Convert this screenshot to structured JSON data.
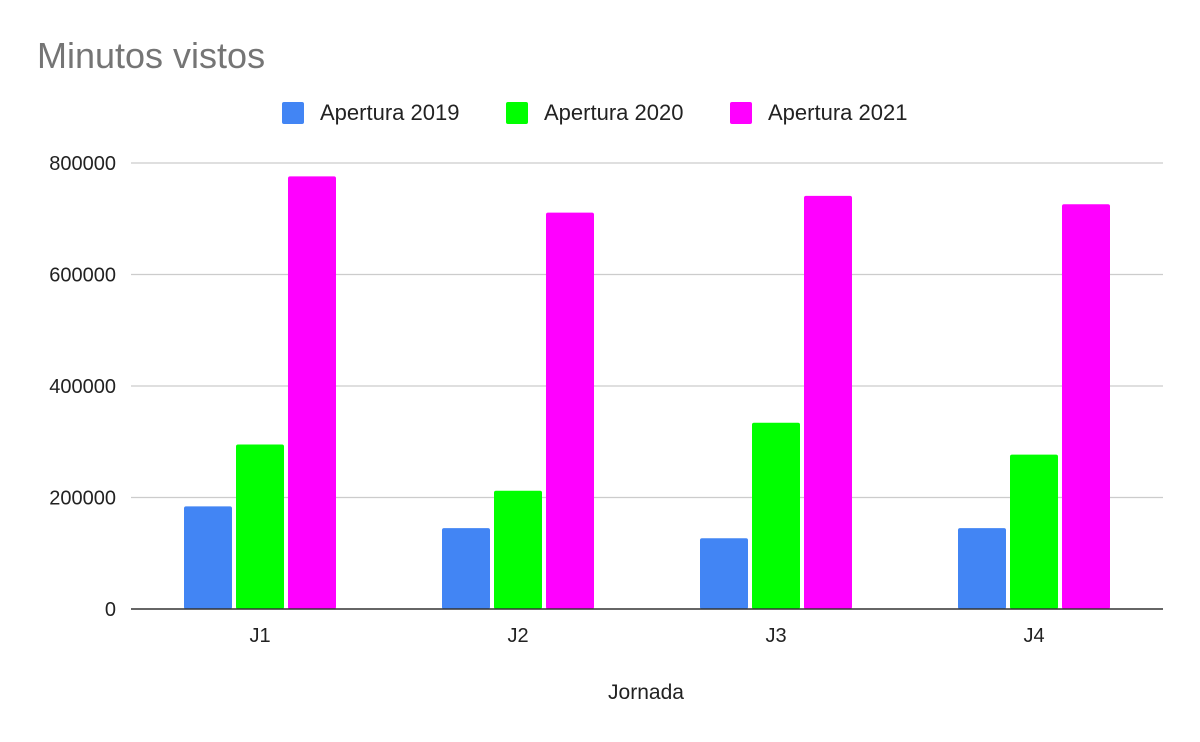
{
  "chart_data": {
    "type": "bar",
    "title": "Minutos vistos",
    "xlabel": "Jornada",
    "ylabel": "",
    "categories": [
      "J1",
      "J2",
      "J3",
      "J4"
    ],
    "series": [
      {
        "name": "Apertura 2019",
        "color": "#4285f4",
        "values": [
          184000,
          145000,
          127000,
          145000
        ]
      },
      {
        "name": "Apertura 2020",
        "color": "#00ff00",
        "values": [
          295000,
          212000,
          334000,
          277000
        ]
      },
      {
        "name": "Apertura 2021",
        "color": "#ff00ff",
        "values": [
          776000,
          711000,
          741000,
          726000
        ]
      }
    ],
    "ylim": [
      0,
      800000
    ],
    "yticks": [
      0,
      200000,
      400000,
      600000,
      800000
    ],
    "ytick_labels": [
      "0",
      "200000",
      "400000",
      "600000",
      "800000"
    ],
    "grid": true,
    "legend_position": "top"
  }
}
